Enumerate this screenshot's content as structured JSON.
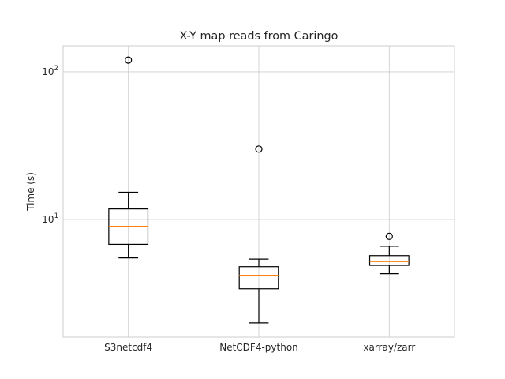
{
  "chart_data": {
    "type": "box",
    "title": "X-Y map reads from Caringo",
    "xlabel": "",
    "ylabel": "Time (s)",
    "yscale": "log",
    "ylim": [
      1.6,
      150
    ],
    "yticks": [
      {
        "value": 10,
        "base": "10",
        "exp": "1"
      },
      {
        "value": 100,
        "base": "10",
        "exp": "2"
      }
    ],
    "grid": true,
    "categories": [
      "S3netcdf4",
      "NetCDF4-python",
      "xarray/zarr"
    ],
    "boxes": [
      {
        "whisker_low": 5.5,
        "q1": 6.8,
        "median": 9.0,
        "q3": 11.8,
        "whisker_high": 15.3,
        "outliers": [
          120
        ]
      },
      {
        "whisker_low": 2.0,
        "q1": 3.4,
        "median": 4.2,
        "q3": 4.8,
        "whisker_high": 5.4,
        "outliers": [
          30
        ]
      },
      {
        "whisker_low": 4.3,
        "q1": 4.9,
        "median": 5.2,
        "q3": 5.7,
        "whisker_high": 6.6,
        "outliers": [
          7.7
        ]
      }
    ],
    "colors": {
      "box": "#000000",
      "median": "#ff7f0e",
      "grid": "#cccccc",
      "spine": "#cccccc",
      "text": "#262626"
    }
  }
}
